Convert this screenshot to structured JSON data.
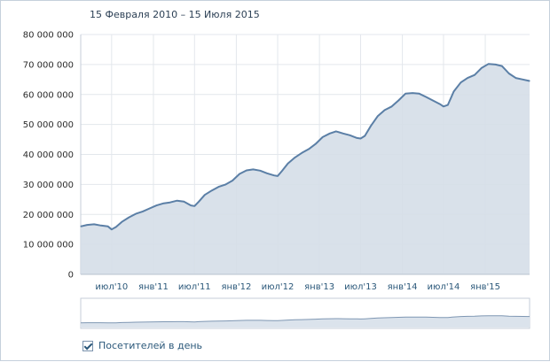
{
  "header": {
    "date_range": "15 Февраля 2010 – 15 Июля 2015"
  },
  "legend": {
    "series_label": "Посетителей в день",
    "checked": true
  },
  "colors": {
    "line": "#5b7fa6",
    "area": "#d5dee8",
    "grid": "#e3e7ec",
    "navigator_area": "#dbe3ec",
    "navigator_line": "#7f97b3"
  },
  "chart_data": {
    "type": "area",
    "title": "",
    "xlabel": "",
    "ylabel": "",
    "ylim": [
      0,
      80000000
    ],
    "y_tick_labels": [
      "0",
      "10 000 000",
      "20 000 000",
      "30 000 000",
      "40 000 000",
      "50 000 000",
      "60 000 000",
      "70 000 000",
      "80 000 000"
    ],
    "y_ticks": [
      0,
      10000000,
      20000000,
      30000000,
      40000000,
      50000000,
      60000000,
      70000000,
      80000000
    ],
    "x_tick_labels": [
      "июл'10",
      "янв'11",
      "июл'11",
      "янв'12",
      "июл'12",
      "янв'13",
      "июл'13",
      "янв'14",
      "июл'14",
      "янв'15"
    ],
    "x_tick_dates": [
      "2010-07-01",
      "2011-01-01",
      "2011-07-01",
      "2012-01-01",
      "2012-07-01",
      "2013-01-01",
      "2013-07-01",
      "2014-01-01",
      "2014-07-01",
      "2015-01-01"
    ],
    "xlim": [
      "2010-02-15",
      "2015-07-15"
    ],
    "grid": true,
    "legend_position": "bottom-left",
    "series": [
      {
        "name": "Посетителей в день",
        "x": [
          "2010-02-15",
          "2010-03-15",
          "2010-04-15",
          "2010-05-15",
          "2010-06-15",
          "2010-07-01",
          "2010-07-20",
          "2010-08-15",
          "2010-09-15",
          "2010-10-15",
          "2010-11-15",
          "2010-12-15",
          "2011-01-15",
          "2011-02-15",
          "2011-03-15",
          "2011-04-15",
          "2011-05-15",
          "2011-06-15",
          "2011-07-01",
          "2011-07-20",
          "2011-08-15",
          "2011-09-15",
          "2011-10-15",
          "2011-11-15",
          "2011-12-15",
          "2012-01-15",
          "2012-02-15",
          "2012-03-15",
          "2012-04-15",
          "2012-05-15",
          "2012-06-15",
          "2012-07-01",
          "2012-07-20",
          "2012-08-15",
          "2012-09-15",
          "2012-10-15",
          "2012-11-15",
          "2012-12-15",
          "2013-01-15",
          "2013-02-15",
          "2013-03-15",
          "2013-04-15",
          "2013-05-15",
          "2013-06-15",
          "2013-07-01",
          "2013-07-20",
          "2013-08-15",
          "2013-09-15",
          "2013-10-15",
          "2013-11-15",
          "2013-12-15",
          "2014-01-15",
          "2014-02-15",
          "2014-03-15",
          "2014-04-15",
          "2014-05-15",
          "2014-06-15",
          "2014-07-01",
          "2014-07-20",
          "2014-08-15",
          "2014-09-15",
          "2014-10-15",
          "2014-11-15",
          "2014-12-15",
          "2015-01-15",
          "2015-02-15",
          "2015-03-15",
          "2015-04-15",
          "2015-05-15",
          "2015-06-15",
          "2015-07-15"
        ],
        "values": [
          16000000,
          16500000,
          16700000,
          16300000,
          16000000,
          15000000,
          15800000,
          17500000,
          19000000,
          20200000,
          21000000,
          22000000,
          23000000,
          23700000,
          24000000,
          24600000,
          24300000,
          23000000,
          22800000,
          24300000,
          26500000,
          28000000,
          29200000,
          30000000,
          31300000,
          33500000,
          34700000,
          35000000,
          34600000,
          33700000,
          33000000,
          32800000,
          34500000,
          37000000,
          39000000,
          40500000,
          41800000,
          43500000,
          45800000,
          47000000,
          47700000,
          47000000,
          46400000,
          45500000,
          45300000,
          46200000,
          49500000,
          52800000,
          54800000,
          56000000,
          58000000,
          60300000,
          60500000,
          60300000,
          59200000,
          58000000,
          56800000,
          56000000,
          56500000,
          61000000,
          64000000,
          65500000,
          66500000,
          68800000,
          70200000,
          70000000,
          69500000,
          67000000,
          65500000,
          65000000,
          64500000
        ]
      }
    ]
  }
}
